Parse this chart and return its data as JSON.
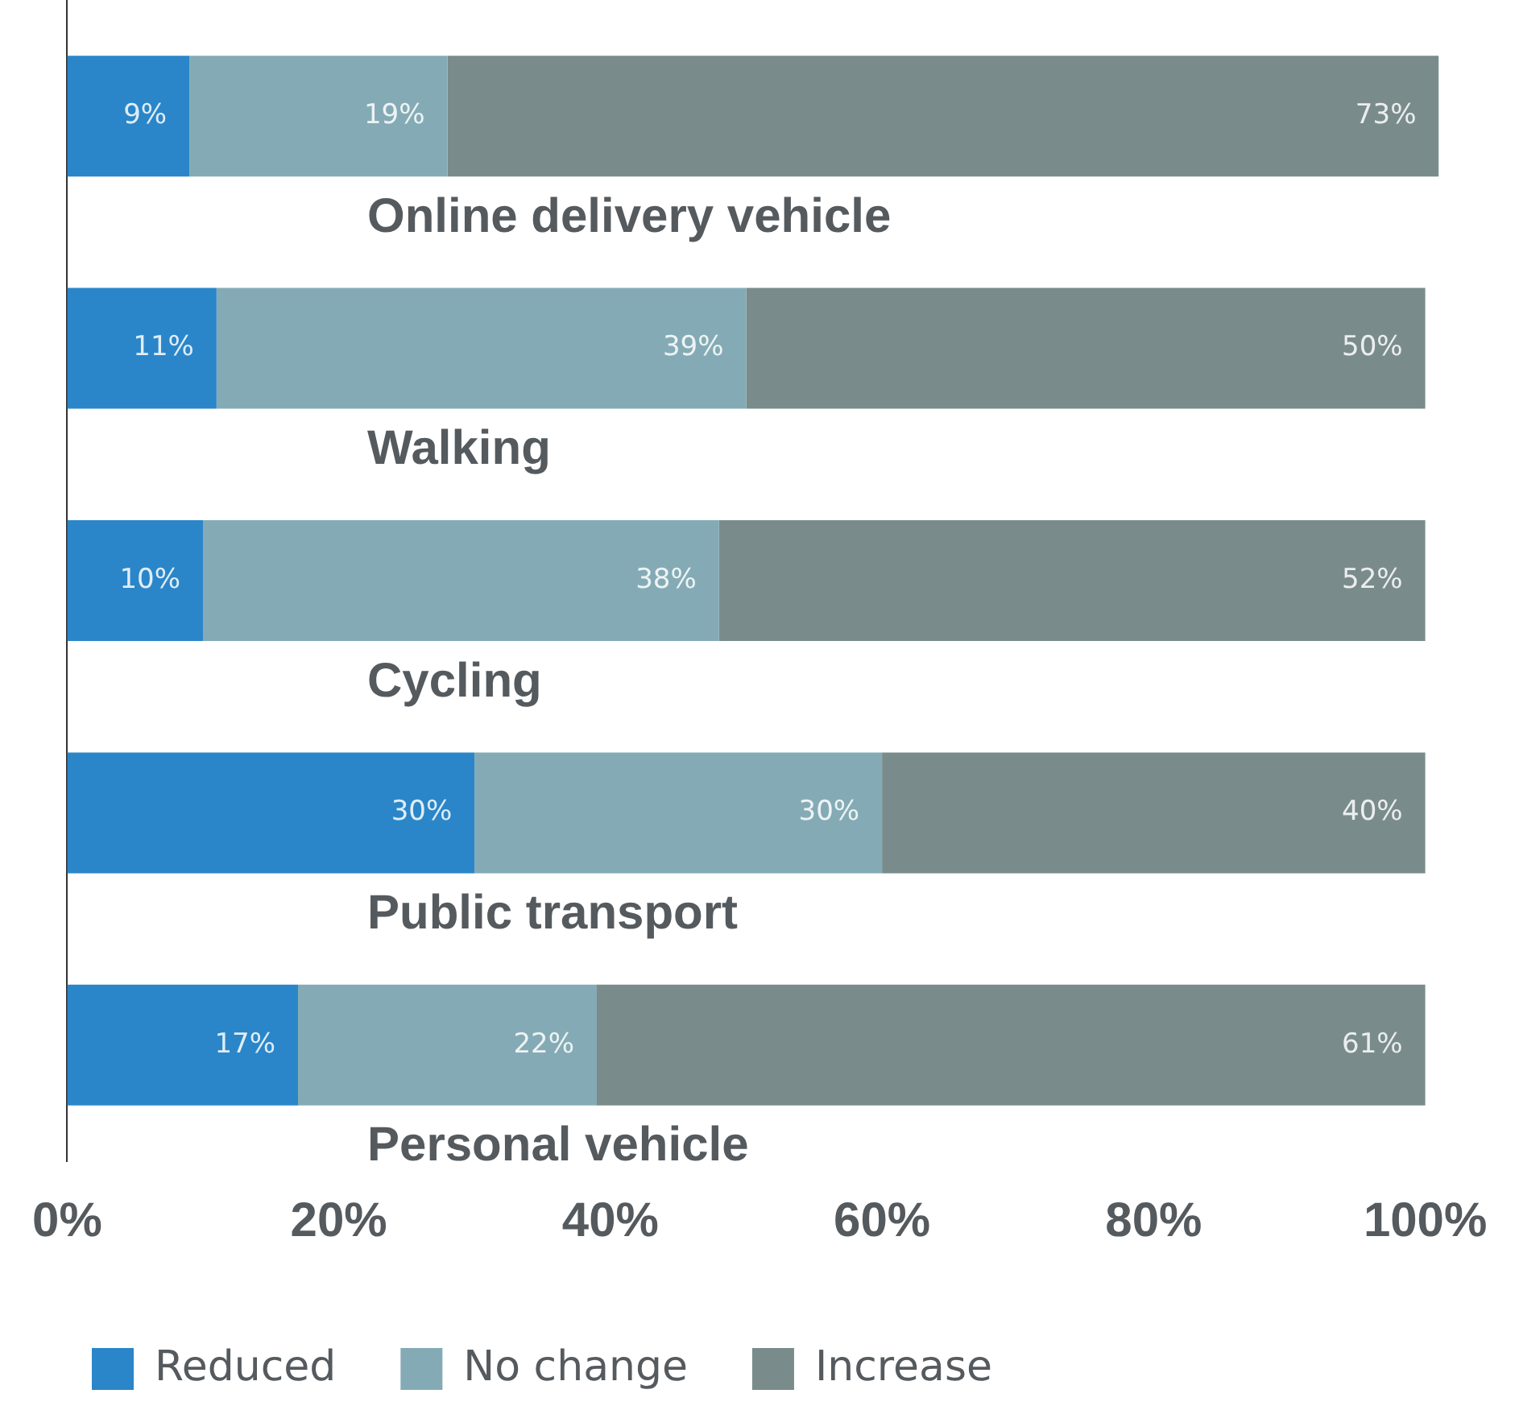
{
  "chart_data": {
    "type": "bar",
    "orientation": "horizontal",
    "stacked": true,
    "categories": [
      "Online delivery vehicle",
      "Walking",
      "Cycling",
      "Public transport",
      "Personal vehicle"
    ],
    "series": [
      {
        "name": "Reduced",
        "color": "#2a86c8",
        "values": [
          9,
          11,
          10,
          30,
          17
        ],
        "value_labels": [
          "9%",
          "11%",
          "10%",
          "30%",
          "17%"
        ]
      },
      {
        "name": "No change",
        "color": "#84abb5",
        "values": [
          19,
          39,
          38,
          30,
          22
        ],
        "value_labels": [
          "19%",
          "39%",
          "38%",
          "30%",
          "22%"
        ]
      },
      {
        "name": "Increase",
        "color": "#7a8b8c",
        "values": [
          73,
          50,
          52,
          40,
          61
        ],
        "value_labels": [
          "73%",
          "50%",
          "52%",
          "40%",
          "61%"
        ]
      }
    ],
    "xlim": [
      0,
      101
    ],
    "xticks": [
      {
        "value": 0,
        "label": "0%"
      },
      {
        "value": 20,
        "label": "20%"
      },
      {
        "value": 40,
        "label": "40%"
      },
      {
        "value": 60,
        "label": "60%"
      },
      {
        "value": 80,
        "label": "80%"
      },
      {
        "value": 100,
        "label": "100%"
      }
    ],
    "grid": false,
    "legend": "bottom left"
  }
}
